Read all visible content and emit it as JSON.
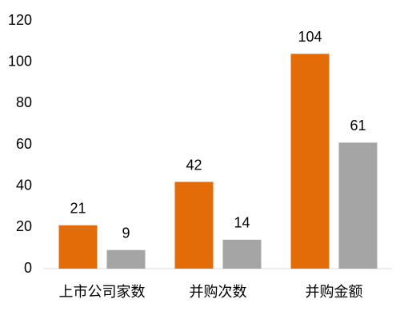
{
  "chart_data": {
    "type": "bar",
    "categories": [
      "上市公司家数",
      "并购次数",
      "并购金额"
    ],
    "series": [
      {
        "color": "#e36c09",
        "values": [
          21,
          42,
          104
        ]
      },
      {
        "color": "#a5a5a5",
        "values": [
          9,
          14,
          61
        ]
      }
    ],
    "ylim": [
      0,
      120
    ],
    "yticks": [
      0,
      20,
      40,
      60,
      80,
      100,
      120
    ],
    "grid": false
  }
}
